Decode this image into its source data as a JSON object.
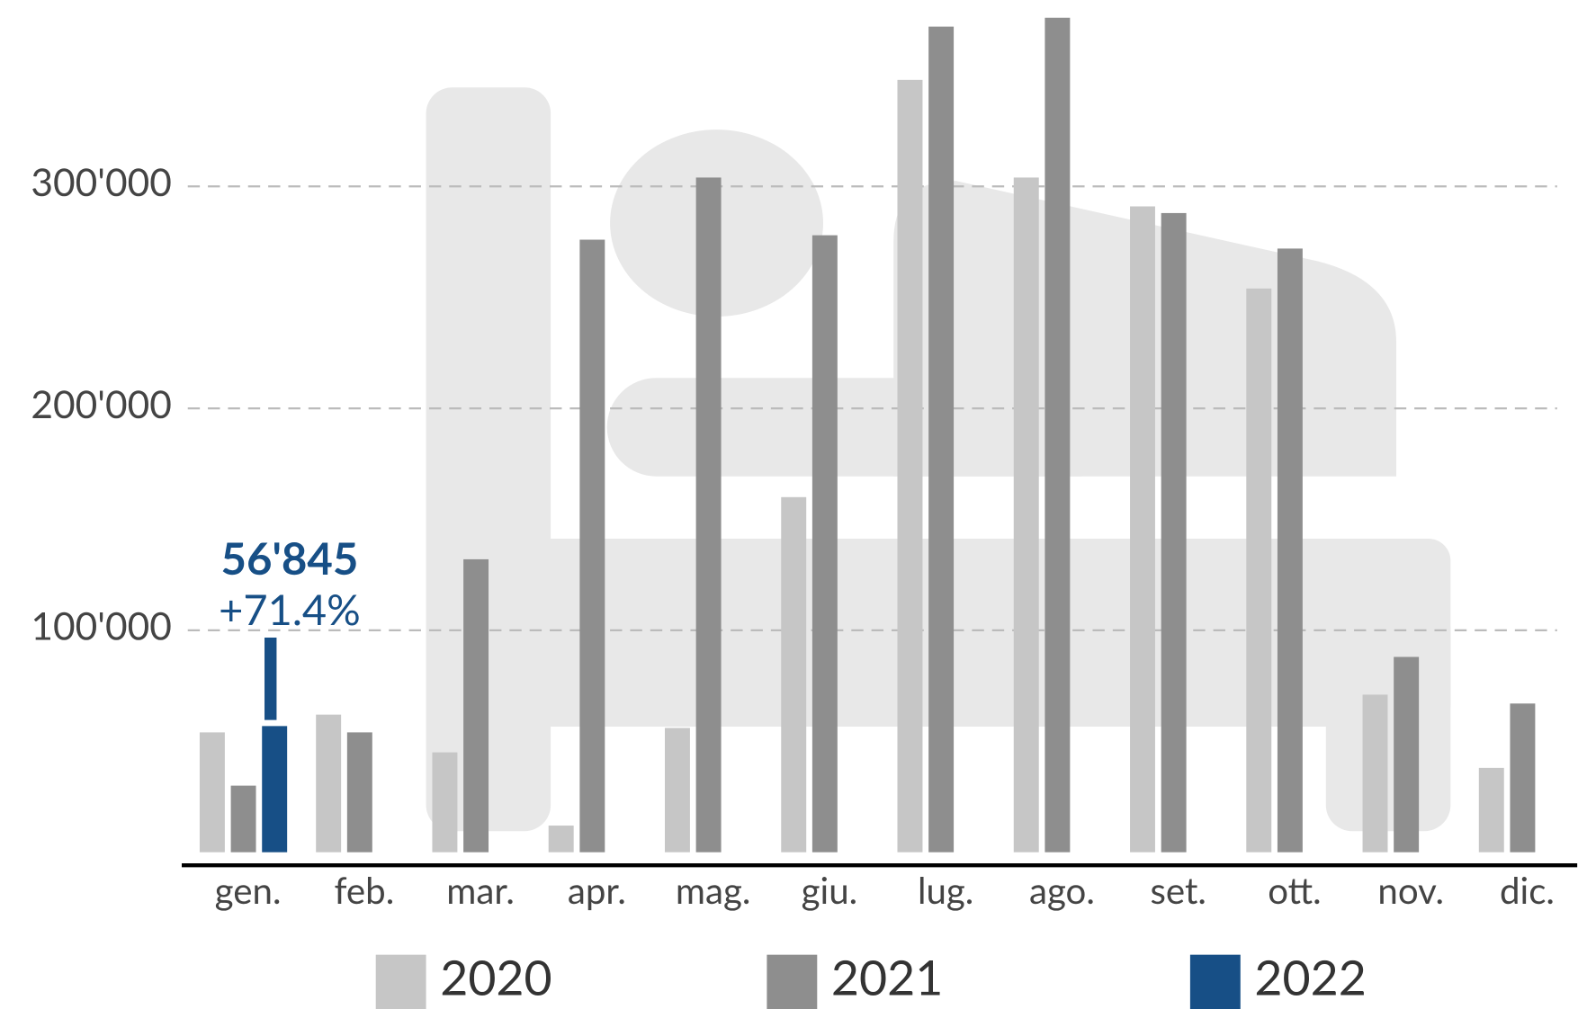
{
  "chart_data": {
    "type": "bar",
    "categories": [
      "gen.",
      "feb.",
      "mar.",
      "apr.",
      "mag.",
      "giu.",
      "lug.",
      "ago.",
      "set.",
      "ott.",
      "nov.",
      "dic."
    ],
    "series": [
      {
        "name": "2020",
        "color": "#c6c6c6",
        "values": [
          54000,
          62000,
          45000,
          12000,
          56000,
          160000,
          348000,
          304000,
          291000,
          254000,
          71000,
          38000
        ]
      },
      {
        "name": "2021",
        "color": "#8e8e8e",
        "values": [
          30000,
          54000,
          132000,
          276000,
          304000,
          278000,
          372000,
          376000,
          288000,
          272000,
          88000,
          67000
        ]
      },
      {
        "name": "2022",
        "color": "#174f86",
        "values": [
          56845,
          null,
          null,
          null,
          null,
          null,
          null,
          null,
          null,
          null,
          null,
          null
        ],
        "value_labels": [
          "56'845",
          null,
          null,
          null,
          null,
          null,
          null,
          null,
          null,
          null,
          null,
          null
        ]
      }
    ],
    "annotation": "+71.4%",
    "ylim": [
      0,
      384000
    ],
    "yticks": [
      {
        "value": 100000,
        "label": "100'000"
      },
      {
        "value": 200000,
        "label": "200'000"
      },
      {
        "value": 300000,
        "label": "300'000"
      }
    ],
    "grid": true,
    "legend": "bottom"
  }
}
